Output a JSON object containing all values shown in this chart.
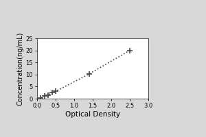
{
  "x_data": [
    0.1,
    0.2,
    0.3,
    0.4,
    0.5,
    1.4,
    2.5
  ],
  "y_data": [
    0.3,
    1.0,
    1.5,
    2.5,
    3.0,
    10.2,
    20.0
  ],
  "xlabel": "Optical Density",
  "ylabel": "Concentration(ng/mL)",
  "xlim": [
    0,
    3
  ],
  "ylim": [
    0,
    25
  ],
  "xticks": [
    0,
    0.5,
    1,
    1.5,
    2,
    2.5,
    3
  ],
  "yticks": [
    0,
    5,
    10,
    15,
    20,
    25
  ],
  "line_color": "#444444",
  "marker": "+",
  "marker_size": 6,
  "marker_linewidth": 1.2,
  "line_style": ":",
  "line_width": 1.2,
  "outer_bg": "#d8d8d8",
  "plot_bg": "#ffffff",
  "tick_fontsize": 6,
  "label_fontsize": 7,
  "xlabel_fontsize": 7.5
}
